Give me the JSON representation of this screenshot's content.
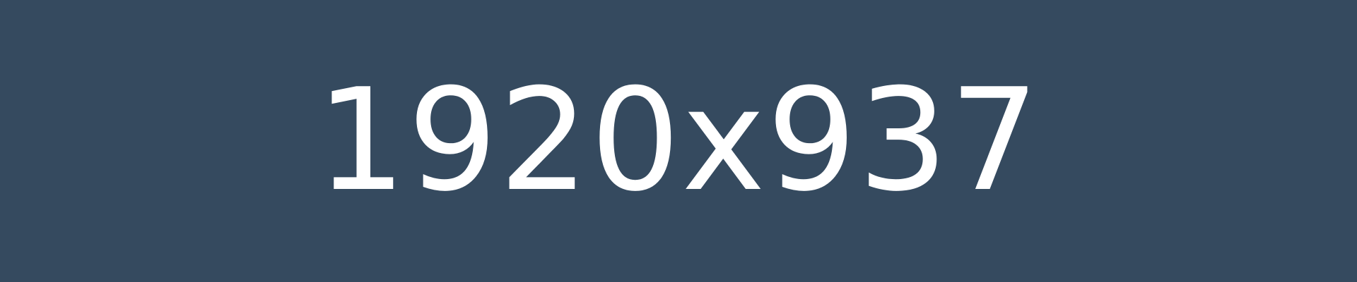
{
  "placeholder": {
    "text": "1920x937",
    "background_color": "#354a5f",
    "text_color": "#ffffff"
  }
}
